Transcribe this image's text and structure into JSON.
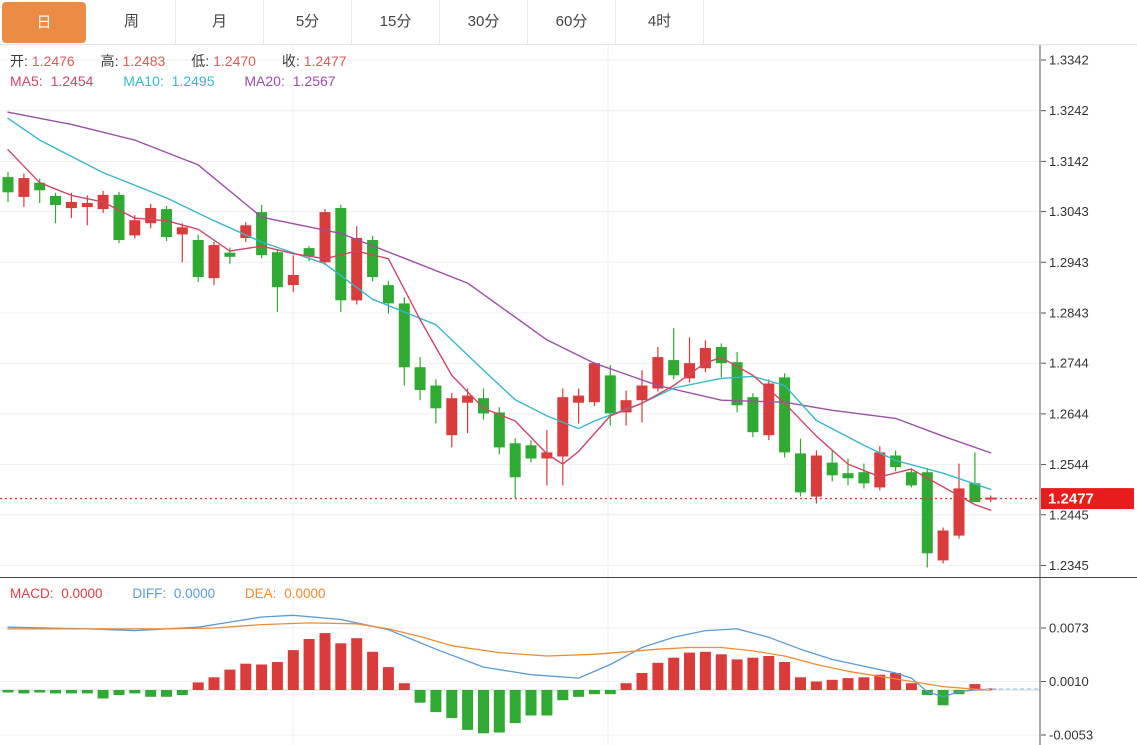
{
  "toolbar": {
    "tabs": [
      {
        "id": "day",
        "label": "日",
        "active": true
      },
      {
        "id": "week",
        "label": "周",
        "active": false
      },
      {
        "id": "month",
        "label": "月",
        "active": false
      },
      {
        "id": "m5",
        "label": "5分",
        "active": false
      },
      {
        "id": "m15",
        "label": "15分",
        "active": false
      },
      {
        "id": "m30",
        "label": "30分",
        "active": false
      },
      {
        "id": "m60",
        "label": "60分",
        "active": false
      },
      {
        "id": "h4",
        "label": "4时",
        "active": false
      }
    ]
  },
  "overlay": {
    "ohlc": {
      "open_label": "开:",
      "open": "1.2476",
      "high_label": "高:",
      "high": "1.2483",
      "low_label": "低:",
      "low": "1.2470",
      "close_label": "收:",
      "close": "1.2477"
    },
    "ma": {
      "ma5_label": "MA5:",
      "ma5": "1.2454",
      "ma10_label": "MA10:",
      "ma10": "1.2495",
      "ma20_label": "MA20:",
      "ma20": "1.2567"
    },
    "macd": {
      "macd_label": "MACD:",
      "macd": "0.0000",
      "diff_label": "DIFF:",
      "diff": "0.0000",
      "dea_label": "DEA:",
      "dea": "0.0000"
    }
  },
  "price_axis": {
    "ticks": [
      "1.3342",
      "1.3242",
      "1.3142",
      "1.3043",
      "1.2943",
      "1.2843",
      "1.2744",
      "1.2644",
      "1.2544",
      "1.2445",
      "1.2345"
    ],
    "last_price": "1.2477",
    "last_price_value": 1.2477
  },
  "macd_axis": {
    "ticks": [
      "0.0073",
      "0.0010",
      "-0.0053"
    ]
  },
  "colors": {
    "accent_tab": "#ec8b43",
    "up_red": "#da3b3b",
    "down_green": "#2faa32",
    "ma5": "#d34566",
    "ma10": "#36b8cd",
    "ma20": "#9d4ea8",
    "diff_blue": "#5b9bd5",
    "dea_orange": "#ee8c33",
    "badge_red": "#e81c1c",
    "dotted_ref": "#e03b3b",
    "dashed_cyan": "#a8d5ef",
    "grid": "#efefef",
    "axis_text": "#333333",
    "ohlc_value_red": "#dd5c5c",
    "macd_label_red": "#d9404a"
  },
  "chart_data": [
    {
      "type": "candlestick",
      "panel": "main",
      "title": "price panel with MA5/MA10/MA20 overlays",
      "ylim": [
        1.2345,
        1.3342
      ],
      "reference_line": 1.2477,
      "ohlc": [
        [
          1.3111,
          1.3121,
          1.3062,
          1.3081
        ],
        [
          1.3072,
          1.3118,
          1.3052,
          1.3109
        ],
        [
          1.31,
          1.3108,
          1.306,
          1.3085
        ],
        [
          1.3074,
          1.308,
          1.302,
          1.3056
        ],
        [
          1.305,
          1.308,
          1.303,
          1.3062
        ],
        [
          1.3052,
          1.3075,
          1.3016,
          1.306
        ],
        [
          1.3048,
          1.3084,
          1.304,
          1.3076
        ],
        [
          1.3076,
          1.3082,
          1.2981,
          1.2987
        ],
        [
          1.2996,
          1.3036,
          1.299,
          1.3026
        ],
        [
          1.302,
          1.3058,
          1.301,
          1.305
        ],
        [
          1.3048,
          1.3054,
          1.2985,
          1.2993
        ],
        [
          1.2998,
          1.302,
          1.2943,
          1.3012
        ],
        [
          1.2987,
          1.2997,
          1.2904,
          1.2914
        ],
        [
          1.2912,
          1.2983,
          1.2898,
          1.2977
        ],
        [
          1.2962,
          1.2972,
          1.294,
          1.2954
        ],
        [
          1.2991,
          1.3022,
          1.2983,
          1.3016
        ],
        [
          1.3042,
          1.3056,
          1.2951,
          1.2957
        ],
        [
          1.2963,
          1.2969,
          1.2845,
          1.2894
        ],
        [
          1.2898,
          1.2957,
          1.2884,
          1.2918
        ],
        [
          1.2971,
          1.2975,
          1.2945,
          1.2955
        ],
        [
          1.2943,
          1.3048,
          1.2937,
          1.3042
        ],
        [
          1.305,
          1.3056,
          1.2845,
          1.2868
        ],
        [
          1.2868,
          1.3014,
          1.286,
          1.2991
        ],
        [
          1.2987,
          1.2995,
          1.2906,
          1.2914
        ],
        [
          1.2898,
          1.2906,
          1.2842,
          1.2862
        ],
        [
          1.2862,
          1.2874,
          1.27,
          1.2736
        ],
        [
          1.2736,
          1.2756,
          1.2671,
          1.2691
        ],
        [
          1.27,
          1.2712,
          1.2625,
          1.2655
        ],
        [
          1.2602,
          1.2685,
          1.2578,
          1.2675
        ],
        [
          1.2666,
          1.2694,
          1.2606,
          1.268
        ],
        [
          1.2675,
          1.2694,
          1.2633,
          1.2645
        ],
        [
          1.2647,
          1.2657,
          1.2564,
          1.2578
        ],
        [
          1.2586,
          1.2596,
          1.2477,
          1.2519
        ],
        [
          1.2582,
          1.2592,
          1.2548,
          1.2556
        ],
        [
          1.2556,
          1.2612,
          1.2503,
          1.2568
        ],
        [
          1.256,
          1.2694,
          1.2503,
          1.2677
        ],
        [
          1.2666,
          1.2694,
          1.2625,
          1.268
        ],
        [
          1.2667,
          1.2746,
          1.2659,
          1.2744
        ],
        [
          1.272,
          1.274,
          1.2621,
          1.2645
        ],
        [
          1.2647,
          1.269,
          1.2621,
          1.2671
        ],
        [
          1.2671,
          1.273,
          1.2627,
          1.27
        ],
        [
          1.2694,
          1.2776,
          1.2688,
          1.2756
        ],
        [
          1.275,
          1.2813,
          1.2712,
          1.272
        ],
        [
          1.2714,
          1.2795,
          1.2706,
          1.2744
        ],
        [
          1.2734,
          1.2789,
          1.2726,
          1.2774
        ],
        [
          1.2776,
          1.2783,
          1.2716,
          1.2744
        ],
        [
          1.2746,
          1.2766,
          1.2647,
          1.2661
        ],
        [
          1.2677,
          1.2685,
          1.2598,
          1.2608
        ],
        [
          1.2602,
          1.2712,
          1.2592,
          1.2704
        ],
        [
          1.2716,
          1.2724,
          1.2558,
          1.2568
        ],
        [
          1.2566,
          1.2595,
          1.2481,
          1.2489
        ],
        [
          1.2481,
          1.2572,
          1.2467,
          1.2562
        ],
        [
          1.2548,
          1.2572,
          1.2511,
          1.2523
        ],
        [
          1.2527,
          1.2556,
          1.2503,
          1.2517
        ],
        [
          1.2529,
          1.2546,
          1.2497,
          1.2507
        ],
        [
          1.2499,
          1.258,
          1.2493,
          1.2568
        ],
        [
          1.2562,
          1.2572,
          1.2531,
          1.2539
        ],
        [
          1.2529,
          1.2537,
          1.2499,
          1.2503
        ],
        [
          1.2529,
          1.2537,
          1.2341,
          1.2369
        ],
        [
          1.2355,
          1.242,
          1.2349,
          1.2414
        ],
        [
          1.2404,
          1.2546,
          1.2398,
          1.2497
        ],
        [
          1.2507,
          1.2568,
          1.247,
          1.247
        ],
        [
          1.2476,
          1.2483,
          1.247,
          1.2477
        ]
      ],
      "ma5_points": [
        [
          0,
          1.3165
        ],
        [
          2,
          1.31
        ],
        [
          4,
          1.3075
        ],
        [
          6,
          1.3062
        ],
        [
          8,
          1.303
        ],
        [
          10,
          1.3025
        ],
        [
          12,
          1.3008
        ],
        [
          14,
          1.2965
        ],
        [
          16,
          1.2975
        ],
        [
          18,
          1.296
        ],
        [
          20,
          1.295
        ],
        [
          22,
          1.2965
        ],
        [
          24,
          1.295
        ],
        [
          26,
          1.283
        ],
        [
          28,
          1.272
        ],
        [
          30,
          1.2655
        ],
        [
          32,
          1.263
        ],
        [
          34,
          1.2565
        ],
        [
          35,
          1.2545
        ],
        [
          36,
          1.257
        ],
        [
          38,
          1.264
        ],
        [
          40,
          1.2665
        ],
        [
          42,
          1.27
        ],
        [
          44,
          1.2745
        ],
        [
          45,
          1.2755
        ],
        [
          47,
          1.272
        ],
        [
          49,
          1.2665
        ],
        [
          51,
          1.26
        ],
        [
          53,
          1.2545
        ],
        [
          55,
          1.252
        ],
        [
          57,
          1.2535
        ],
        [
          59,
          1.25
        ],
        [
          61,
          1.2465
        ],
        [
          62,
          1.2454
        ]
      ],
      "ma10_points": [
        [
          0,
          1.3227
        ],
        [
          2,
          1.3184
        ],
        [
          6,
          1.312
        ],
        [
          10,
          1.307
        ],
        [
          13,
          1.3025
        ],
        [
          16,
          1.2983
        ],
        [
          20,
          1.294
        ],
        [
          23,
          1.287
        ],
        [
          27,
          1.282
        ],
        [
          30,
          1.273
        ],
        [
          32,
          1.2672
        ],
        [
          34,
          1.264
        ],
        [
          36,
          1.2615
        ],
        [
          37,
          1.263
        ],
        [
          40,
          1.2665
        ],
        [
          42,
          1.2695
        ],
        [
          45,
          1.2714
        ],
        [
          47,
          1.2718
        ],
        [
          49,
          1.27
        ],
        [
          51,
          1.2631
        ],
        [
          54,
          1.2582
        ],
        [
          56,
          1.2552
        ],
        [
          59,
          1.2527
        ],
        [
          62,
          1.2495
        ]
      ],
      "ma20_points": [
        [
          0,
          1.3239
        ],
        [
          4,
          1.3215
        ],
        [
          8,
          1.3184
        ],
        [
          12,
          1.3135
        ],
        [
          16,
          1.3032
        ],
        [
          21,
          1.3
        ],
        [
          25,
          1.2951
        ],
        [
          29,
          1.2902
        ],
        [
          34,
          1.279
        ],
        [
          37,
          1.2744
        ],
        [
          41,
          1.27
        ],
        [
          45,
          1.2671
        ],
        [
          49,
          1.2667
        ],
        [
          52,
          1.2651
        ],
        [
          56,
          1.2635
        ],
        [
          59,
          1.26
        ],
        [
          62,
          1.2567
        ]
      ]
    },
    {
      "type": "bar",
      "panel": "macd",
      "title": "MACD histogram with DIFF/DEA lines",
      "ylim": [
        -0.0053,
        0.0073
      ],
      "macd": [
        -0.0003,
        -0.0004,
        -0.0003,
        -0.0004,
        -0.0004,
        -0.0004,
        -0.001,
        -0.0006,
        -0.0004,
        -0.0008,
        -0.0008,
        -0.0006,
        0.0009,
        0.0015,
        0.0024,
        0.0031,
        0.003,
        0.0033,
        0.0047,
        0.006,
        0.0067,
        0.0055,
        0.0061,
        0.0045,
        0.0027,
        0.0008,
        -0.0015,
        -0.0026,
        -0.0033,
        -0.0047,
        -0.0051,
        -0.005,
        -0.0039,
        -0.003,
        -0.003,
        -0.0012,
        -0.0008,
        -0.0005,
        -0.0005,
        0.0008,
        0.002,
        0.0032,
        0.0038,
        0.0044,
        0.0045,
        0.0042,
        0.0036,
        0.0038,
        0.004,
        0.0033,
        0.0015,
        0.001,
        0.0012,
        0.0014,
        0.0015,
        0.0018,
        0.002,
        0.0008,
        -0.0006,
        -0.0018,
        -0.0005,
        0.0007,
        0.0
      ],
      "diff_points": [
        [
          0,
          0.0074
        ],
        [
          5,
          0.0072
        ],
        [
          8,
          0.007
        ],
        [
          12,
          0.0074
        ],
        [
          14,
          0.008
        ],
        [
          16,
          0.0086
        ],
        [
          18,
          0.0088
        ],
        [
          21,
          0.0083
        ],
        [
          24,
          0.0071
        ],
        [
          27,
          0.0048
        ],
        [
          30,
          0.0027
        ],
        [
          33,
          0.0018
        ],
        [
          36,
          0.0014
        ],
        [
          38,
          0.003
        ],
        [
          40,
          0.005
        ],
        [
          42,
          0.0062
        ],
        [
          44,
          0.007
        ],
        [
          46,
          0.0072
        ],
        [
          48,
          0.0062
        ],
        [
          50,
          0.0048
        ],
        [
          52,
          0.0036
        ],
        [
          54,
          0.0028
        ],
        [
          56,
          0.002
        ],
        [
          57,
          0.0014
        ],
        [
          58,
          -0.0002
        ],
        [
          59,
          -0.0008
        ],
        [
          60,
          -0.0002
        ],
        [
          61,
          0.0
        ],
        [
          62,
          0.0
        ]
      ],
      "dea_points": [
        [
          0,
          0.0072
        ],
        [
          6,
          0.0072
        ],
        [
          10,
          0.0072
        ],
        [
          13,
          0.0073
        ],
        [
          16,
          0.0077
        ],
        [
          19,
          0.0079
        ],
        [
          22,
          0.0078
        ],
        [
          24,
          0.0072
        ],
        [
          26,
          0.0063
        ],
        [
          28,
          0.0052
        ],
        [
          31,
          0.0044
        ],
        [
          34,
          0.004
        ],
        [
          37,
          0.0042
        ],
        [
          39,
          0.0045
        ],
        [
          41,
          0.0048
        ],
        [
          43,
          0.005
        ],
        [
          45,
          0.005
        ],
        [
          47,
          0.0046
        ],
        [
          49,
          0.004
        ],
        [
          51,
          0.003
        ],
        [
          53,
          0.0022
        ],
        [
          55,
          0.0016
        ],
        [
          57,
          0.001
        ],
        [
          59,
          0.0004
        ],
        [
          61,
          0.0001
        ],
        [
          62,
          0.0
        ]
      ]
    }
  ]
}
